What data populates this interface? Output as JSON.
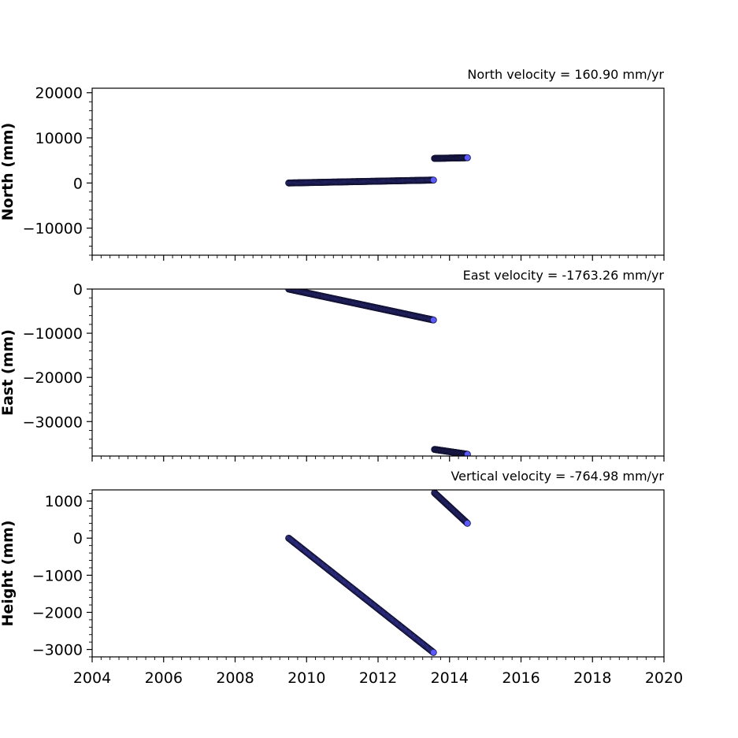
{
  "chart_data": [
    {
      "type": "scatter",
      "title": "North velocity = 160.90 mm/yr",
      "xlabel": "",
      "ylabel": "North (mm)",
      "xlim": [
        2004,
        2020
      ],
      "ylim": [
        -16000,
        21000
      ],
      "yticks": [
        20000,
        10000,
        0,
        -10000
      ],
      "ytick_labels": [
        "20000",
        "10000",
        "0",
        "−10000"
      ],
      "x_tick_labels_shown": false,
      "grid": false,
      "marker_color": "#5a5aff",
      "marker_edge": "#111133",
      "series": [
        {
          "segments": [
            {
              "x_start": 2009.5,
              "x_end": 2013.55,
              "y_start": 0,
              "y_end": 650,
              "n": 200
            },
            {
              "x_start": 2013.58,
              "x_end": 2014.5,
              "y_start": 5450,
              "y_end": 5600,
              "n": 60
            }
          ]
        }
      ]
    },
    {
      "type": "scatter",
      "title": "East velocity = -1763.26 mm/yr",
      "xlabel": "",
      "ylabel": "East (mm)",
      "xlim": [
        2004,
        2020
      ],
      "ylim": [
        -37800,
        0
      ],
      "yticks": [
        0,
        -10000,
        -20000,
        -30000
      ],
      "ytick_labels": [
        "0",
        "−10000",
        "−20000",
        "−30000"
      ],
      "x_tick_labels_shown": false,
      "grid": false,
      "marker_color": "#5a5aff",
      "marker_edge": "#111133",
      "series": [
        {
          "segments": [
            {
              "x_start": 2009.5,
              "x_end": 2013.55,
              "y_start": 0,
              "y_end": -7000,
              "n": 200
            },
            {
              "x_start": 2013.58,
              "x_end": 2014.5,
              "y_start": -36300,
              "y_end": -37400,
              "n": 60
            }
          ]
        }
      ]
    },
    {
      "type": "scatter",
      "title": "Vertical velocity = -764.98 mm/yr",
      "xlabel": "",
      "ylabel": "Height (mm)",
      "xlim": [
        2004,
        2020
      ],
      "ylim": [
        -3200,
        1300
      ],
      "yticks": [
        1000,
        0,
        -1000,
        -2000,
        -3000
      ],
      "ytick_labels": [
        "1000",
        "0",
        "−1000",
        "−2000",
        "−3000"
      ],
      "x_tick_labels_shown": true,
      "xticks": [
        2004,
        2006,
        2008,
        2010,
        2012,
        2014,
        2016,
        2018,
        2020
      ],
      "xtick_labels": [
        "2004",
        "2006",
        "2008",
        "2010",
        "2012",
        "2014",
        "2016",
        "2018",
        "2020"
      ],
      "grid": false,
      "marker_color": "#5a5aff",
      "marker_edge": "#111133",
      "series": [
        {
          "segments": [
            {
              "x_start": 2009.5,
              "x_end": 2013.55,
              "y_start": 0,
              "y_end": -3080,
              "n": 200
            },
            {
              "x_start": 2013.58,
              "x_end": 2014.5,
              "y_start": 1220,
              "y_end": 400,
              "n": 60
            }
          ]
        }
      ]
    }
  ]
}
